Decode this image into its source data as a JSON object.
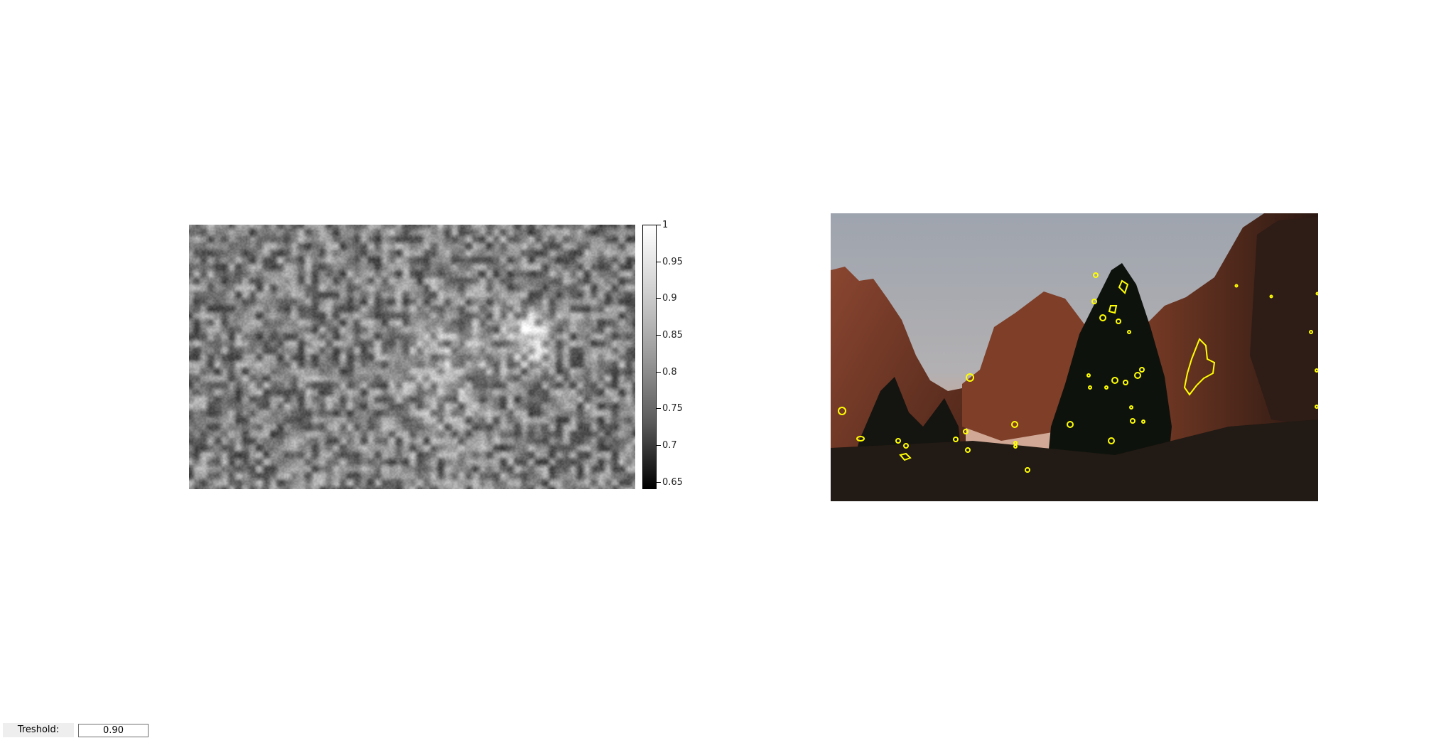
{
  "heatmap": {
    "colormap": "gray",
    "range": [
      0.64,
      1.0
    ]
  },
  "colorbar": {
    "ticks": [
      {
        "value": 1,
        "label": "1"
      },
      {
        "value": 0.95,
        "label": "0.95"
      },
      {
        "value": 0.9,
        "label": "0.9"
      },
      {
        "value": 0.85,
        "label": "0.85"
      },
      {
        "value": 0.8,
        "label": "0.8"
      },
      {
        "value": 0.75,
        "label": "0.75"
      },
      {
        "value": 0.7,
        "label": "0.7"
      },
      {
        "value": 0.65,
        "label": "0.65"
      }
    ]
  },
  "photo": {
    "contour_color": "#ffff00",
    "sky_color": "#a4a8b0",
    "rock_color": "#7a3e28"
  },
  "controls": {
    "threshold_label": "Treshold:",
    "threshold_value": "0.90"
  }
}
